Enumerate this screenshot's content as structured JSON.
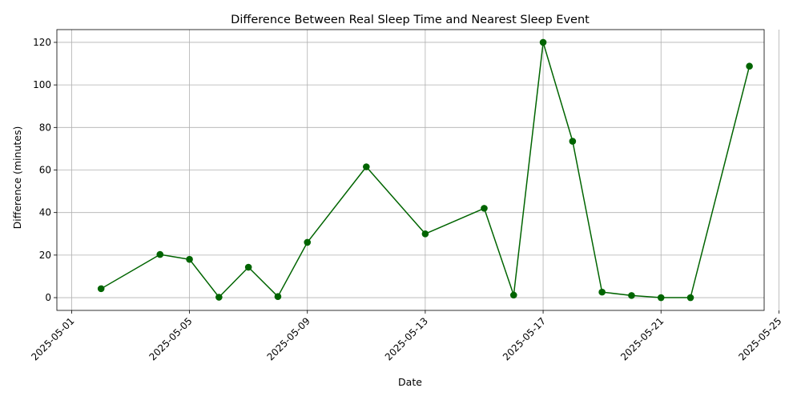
{
  "chart_data": {
    "type": "line",
    "title": "Difference Between Real Sleep Time and Nearest Sleep Event",
    "xlabel": "Date",
    "ylabel": "Difference (minutes)",
    "grid": true,
    "x_axis": {
      "type": "date",
      "range": [
        "2025-04-30T12:00",
        "2025-05-24T12:00"
      ],
      "ticks": [
        "2025-05-01",
        "2025-05-05",
        "2025-05-09",
        "2025-05-13",
        "2025-05-17",
        "2025-05-21",
        "2025-05-25"
      ]
    },
    "y_axis": {
      "range": [
        -6,
        126
      ],
      "ticks": [
        0,
        20,
        40,
        60,
        80,
        100,
        120
      ]
    },
    "series": [
      {
        "color": "#006400",
        "marker": "circle",
        "points": [
          {
            "x": "2025-05-02",
            "y": 4.2
          },
          {
            "x": "2025-05-04",
            "y": 20.3
          },
          {
            "x": "2025-05-05",
            "y": 18.0
          },
          {
            "x": "2025-05-06",
            "y": 0.2
          },
          {
            "x": "2025-05-07",
            "y": 14.3
          },
          {
            "x": "2025-05-08",
            "y": 0.5
          },
          {
            "x": "2025-05-09",
            "y": 26.0
          },
          {
            "x": "2025-05-11",
            "y": 61.5
          },
          {
            "x": "2025-05-13",
            "y": 30.0
          },
          {
            "x": "2025-05-15",
            "y": 42.0
          },
          {
            "x": "2025-05-16",
            "y": 1.2
          },
          {
            "x": "2025-05-17",
            "y": 120.0
          },
          {
            "x": "2025-05-18",
            "y": 73.5
          },
          {
            "x": "2025-05-19",
            "y": 2.6
          },
          {
            "x": "2025-05-20",
            "y": 1.0
          },
          {
            "x": "2025-05-21",
            "y": 0.0
          },
          {
            "x": "2025-05-22",
            "y": 0.0
          },
          {
            "x": "2025-05-24",
            "y": 108.8
          }
        ]
      }
    ]
  }
}
